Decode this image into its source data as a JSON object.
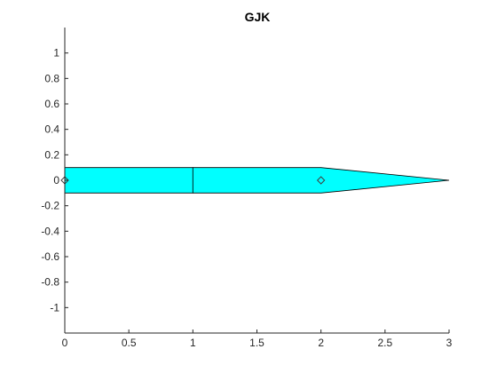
{
  "chart_data": {
    "type": "polygon",
    "title": "GJK",
    "xlabel": "",
    "ylabel": "",
    "xlim": [
      0,
      3
    ],
    "ylim": [
      -1.2,
      1.2
    ],
    "xticks": [
      0,
      0.5,
      1,
      1.5,
      2,
      2.5,
      3
    ],
    "xtick_labels": [
      "0",
      "0.5",
      "1",
      "1.5",
      "2",
      "2.5",
      "3"
    ],
    "yticks": [
      1,
      0.8,
      0.6,
      0.4,
      0.2,
      0,
      -0.2,
      -0.4,
      -0.6,
      -0.8,
      -1
    ],
    "ytick_labels": [
      "1",
      "0.8",
      "0.6",
      "0.4",
      "0.2",
      "0",
      "-0.2",
      "-0.4",
      "-0.6",
      "-0.8",
      "-1"
    ],
    "grid": false,
    "shapes": [
      {
        "vertices": [
          [
            0,
            -0.1
          ],
          [
            1,
            -0.1
          ],
          [
            1,
            0.1
          ],
          [
            0,
            0.1
          ]
        ],
        "fill": "#00ffff"
      },
      {
        "vertices": [
          [
            1,
            -0.1
          ],
          [
            2,
            -0.1
          ],
          [
            3,
            0
          ],
          [
            2,
            0.1
          ],
          [
            1,
            0.1
          ]
        ],
        "fill": "#00ffff"
      }
    ],
    "markers": [
      {
        "x": 0,
        "y": 0,
        "marker": "diamond"
      },
      {
        "x": 2,
        "y": 0,
        "marker": "diamond"
      }
    ]
  }
}
